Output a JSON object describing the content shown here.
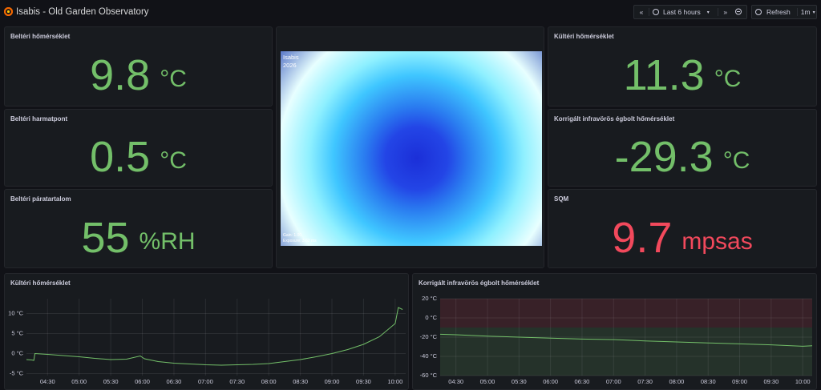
{
  "header": {
    "title": "Isabis - Old Garden Observatory",
    "time_range": "Last 6 hours",
    "refresh": "Refresh",
    "interval": "1m"
  },
  "stats": [
    {
      "title": "Beltéri hőmérséklet",
      "value": 9.8,
      "unit": "°C",
      "color": "#73bf69"
    },
    {
      "title": "Beltéri harmatpont",
      "value": 0.5,
      "unit": "°C",
      "color": "#73bf69"
    },
    {
      "title": "Beltéri páratartalom",
      "value": 55,
      "unit": "%RH",
      "color": "#73bf69"
    },
    {
      "title": "Kültéri hőmérséklet",
      "value": 11.3,
      "unit": "°C",
      "color": "#73bf69"
    },
    {
      "title": "Korrigált infravörös égbolt hőmérséklet",
      "value": -29.3,
      "unit": "°C",
      "color": "#73bf69"
    },
    {
      "title": "SQM",
      "value": 9.7,
      "unit": "mpsas",
      "color": "#f2495c"
    }
  ],
  "camera": {
    "caption": "Isabis",
    "date": "2026",
    "gain": "Gain: 1.00",
    "exposure": "Exposure: 3.62 ms"
  },
  "charts": [
    {
      "type": "line",
      "title": "Kültéri hőmérséklet",
      "color": "#73bf69",
      "xlim": [
        "04:10",
        "10:10"
      ],
      "ylim": [
        -5.5,
        13.7
      ],
      "xticks": [
        "04:30",
        "05:00",
        "05:30",
        "06:00",
        "06:30",
        "07:00",
        "07:30",
        "08:00",
        "08:30",
        "09:00",
        "09:30",
        "10:00"
      ],
      "yticks": [
        {
          "value": -5,
          "label": "-5 °C"
        },
        {
          "value": 0,
          "label": "0 °C"
        },
        {
          "value": 5,
          "label": "5 °C"
        },
        {
          "value": 10,
          "label": "10 °C"
        }
      ],
      "x": [
        "04:10",
        "04:15",
        "04:17",
        "04:18",
        "04:30",
        "04:45",
        "05:00",
        "05:15",
        "05:30",
        "05:45",
        "05:58",
        "06:02",
        "06:15",
        "06:30",
        "06:45",
        "07:00",
        "07:15",
        "07:30",
        "07:45",
        "08:00",
        "08:15",
        "08:30",
        "08:45",
        "09:00",
        "09:15",
        "09:30",
        "09:45",
        "10:00",
        "10:03",
        "10:07"
      ],
      "values": [
        -1.5,
        -1.6,
        -1.7,
        0,
        -0.2,
        -0.5,
        -0.8,
        -1.2,
        -1.5,
        -1.4,
        -0.6,
        -1.3,
        -2,
        -2.4,
        -2.6,
        -2.8,
        -2.9,
        -2.8,
        -2.7,
        -2.5,
        -2,
        -1.5,
        -0.8,
        0,
        1,
        2.3,
        4.2,
        7.5,
        11.5,
        11
      ]
    },
    {
      "type": "line",
      "title": "Korrigált infravörös égbolt hőmérséklet",
      "color": "#73bf69",
      "xlim": [
        "04:15",
        "10:09"
      ],
      "ylim": [
        -60,
        20
      ],
      "thresholds": [
        {
          "from": -10,
          "to": 20,
          "color": "#f2495c"
        },
        {
          "from": -60,
          "to": -10,
          "color": "#73bf69"
        }
      ],
      "xticks": [
        "04:30",
        "05:00",
        "05:30",
        "06:00",
        "06:30",
        "07:00",
        "07:30",
        "08:00",
        "08:30",
        "09:00",
        "09:30",
        "10:00"
      ],
      "yticks": [
        {
          "value": -60,
          "label": "-60 °C"
        },
        {
          "value": -40,
          "label": "-40 °C"
        },
        {
          "value": -20,
          "label": "-20 °C"
        },
        {
          "value": 0,
          "label": "0 °C"
        },
        {
          "value": 20,
          "label": "20 °C"
        }
      ],
      "x": [
        "04:15",
        "04:30",
        "05:00",
        "05:30",
        "06:00",
        "06:30",
        "07:00",
        "07:30",
        "08:00",
        "08:30",
        "09:00",
        "09:30",
        "10:00",
        "10:09"
      ],
      "values": [
        -17,
        -17.5,
        -19,
        -20,
        -21,
        -22,
        -22.5,
        -24,
        -25,
        -26,
        -27,
        -28,
        -29.5,
        -29
      ]
    }
  ]
}
